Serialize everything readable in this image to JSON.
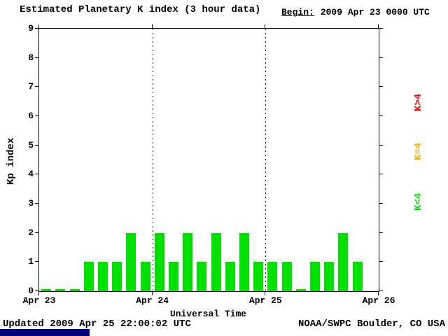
{
  "chart_data": {
    "type": "bar",
    "title": "Estimated Planetary K index (3 hour data)",
    "begin_label": "Begin:",
    "begin_value": "2009 Apr 23 0000 UTC",
    "xlabel": "Universal Time",
    "ylabel": "Kp index",
    "ylim": [
      0,
      9
    ],
    "y_ticks": [
      0,
      1,
      2,
      3,
      4,
      5,
      6,
      7,
      8,
      9
    ],
    "x_ticks": [
      "Apr 23",
      "Apr 24",
      "Apr 25",
      "Apr 26"
    ],
    "days": [
      {
        "label": "Apr 23",
        "values": [
          0,
          0,
          0,
          1,
          1,
          1,
          2,
          1
        ]
      },
      {
        "label": "Apr 24",
        "values": [
          2,
          1,
          2,
          1,
          2,
          1,
          2,
          1
        ]
      },
      {
        "label": "Apr 25",
        "values": [
          1,
          1,
          0,
          1,
          1,
          2,
          1
        ]
      }
    ],
    "bar_colors": {
      "k_lt_4": "#00e000",
      "k_eq_4": "#ffaa00",
      "k_gt_4": "#ff0000"
    },
    "legend": [
      {
        "label": "K>4",
        "color": "#ff0000"
      },
      {
        "label": "K=4",
        "color": "#ffaa00"
      },
      {
        "label": "K<4",
        "color": "#00e000"
      }
    ],
    "legend_position": "right, rotated vertical",
    "grid": "dotted vertical lines at interior day boundaries",
    "updated_text": "Updated 2009 Apr 25 22:00:02 UTC",
    "credit_text": "NOAA/SWPC Boulder, CO USA"
  }
}
